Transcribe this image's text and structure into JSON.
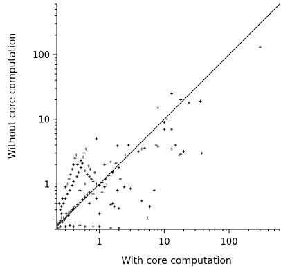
{
  "chart_data": {
    "type": "scatter",
    "title": "",
    "xlabel": "With core computation",
    "ylabel": "Without core computation",
    "x_scale": "log",
    "y_scale": "log",
    "xlim": [
      0.22,
      600
    ],
    "ylim": [
      0.2,
      600
    ],
    "x_ticks": [
      {
        "value": 1,
        "label": "1"
      },
      {
        "value": 10,
        "label": "10"
      },
      {
        "value": 100,
        "label": "100"
      }
    ],
    "y_ticks": [
      {
        "value": 1,
        "label": "1"
      },
      {
        "value": 10,
        "label": "10"
      },
      {
        "value": 100,
        "label": "100"
      }
    ],
    "grid": false,
    "legend": "none",
    "marker": "+",
    "reference_line": "y = x",
    "series": [
      {
        "points": [
          [
            300,
            130
          ],
          [
            13,
            25
          ],
          [
            18,
            20
          ],
          [
            24,
            18
          ],
          [
            36,
            19
          ],
          [
            8,
            15
          ],
          [
            11,
            10
          ],
          [
            10,
            9
          ],
          [
            10,
            7
          ],
          [
            20,
            3.2
          ],
          [
            18,
            2.9
          ],
          [
            17,
            2.8
          ],
          [
            38,
            3
          ],
          [
            13,
            3.5
          ],
          [
            15,
            4
          ],
          [
            13,
            7
          ],
          [
            7.5,
            4
          ],
          [
            8,
            3.8
          ],
          [
            5,
            3.6
          ],
          [
            4.5,
            3.5
          ],
          [
            4,
            3.2
          ],
          [
            2.8,
            4
          ],
          [
            2.5,
            2.8
          ],
          [
            1.9,
            3.9
          ],
          [
            0.9,
            5
          ],
          [
            1.2,
            2
          ],
          [
            1.5,
            2.2
          ],
          [
            1.8,
            2.1
          ],
          [
            1.6,
            1.5
          ],
          [
            2,
            1.8
          ],
          [
            2.1,
            1.2
          ],
          [
            2.4,
            0.9
          ],
          [
            1.9,
            0.8
          ],
          [
            3,
            0.85
          ],
          [
            7,
            0.8
          ],
          [
            4.5,
            0.55
          ],
          [
            6,
            0.45
          ],
          [
            5.5,
            0.3
          ],
          [
            1.6,
            0.5
          ],
          [
            1.7,
            0.45
          ],
          [
            1.5,
            0.48
          ],
          [
            2,
            0.42
          ],
          [
            1,
            0.35
          ],
          [
            0.7,
            0.5
          ],
          [
            0.9,
            0.6
          ],
          [
            1.1,
            0.75
          ],
          [
            1.3,
            1
          ],
          [
            1.2,
            0.9
          ],
          [
            0.8,
            0.7
          ],
          [
            0.75,
            1.2
          ],
          [
            0.6,
            1
          ],
          [
            0.5,
            0.8
          ],
          [
            0.55,
            2.1
          ],
          [
            0.52,
            1.8
          ],
          [
            0.48,
            1.5
          ],
          [
            0.45,
            1.3
          ],
          [
            0.4,
            1.1
          ],
          [
            0.38,
            0.95
          ],
          [
            0.35,
            0.8
          ],
          [
            0.32,
            0.7
          ],
          [
            0.3,
            0.6
          ],
          [
            0.28,
            0.5
          ],
          [
            0.26,
            0.45
          ],
          [
            0.42,
            2.5
          ],
          [
            0.44,
            2.8
          ],
          [
            0.5,
            2.2
          ],
          [
            0.58,
            3
          ],
          [
            0.62,
            3.5
          ],
          [
            0.6,
            1.6
          ],
          [
            0.65,
            1.4
          ],
          [
            0.7,
            1.3
          ],
          [
            0.8,
            1.1
          ],
          [
            0.9,
            1
          ],
          [
            1,
            0.95
          ],
          [
            1.1,
            1.05
          ],
          [
            1.25,
            1.2
          ],
          [
            1.4,
            1.35
          ],
          [
            1.6,
            1.55
          ],
          [
            0.33,
            0.33
          ],
          [
            0.3,
            0.3
          ],
          [
            0.28,
            0.3
          ],
          [
            0.25,
            0.27
          ],
          [
            0.24,
            0.25
          ],
          [
            0.23,
            0.24
          ],
          [
            0.27,
            0.26
          ],
          [
            0.29,
            0.28
          ],
          [
            0.34,
            0.36
          ],
          [
            0.38,
            0.4
          ],
          [
            0.42,
            0.45
          ],
          [
            0.46,
            0.48
          ],
          [
            0.5,
            0.52
          ],
          [
            0.55,
            0.58
          ],
          [
            0.6,
            0.63
          ],
          [
            0.65,
            0.68
          ],
          [
            0.7,
            0.74
          ],
          [
            0.36,
            0.38
          ],
          [
            0.4,
            0.42
          ],
          [
            0.31,
            0.35
          ],
          [
            0.26,
            0.3
          ],
          [
            0.25,
            0.22
          ],
          [
            0.23,
            0.21
          ],
          [
            0.3,
            0.22
          ],
          [
            0.35,
            0.23
          ],
          [
            0.4,
            0.22
          ],
          [
            0.5,
            0.23
          ],
          [
            0.6,
            0.22
          ],
          [
            0.8,
            0.22
          ],
          [
            1,
            0.22
          ],
          [
            1.5,
            0.21
          ],
          [
            2,
            0.21
          ],
          [
            0.24,
            0.5
          ],
          [
            0.25,
            0.4
          ],
          [
            0.26,
            0.35
          ],
          [
            0.27,
            0.6
          ],
          [
            0.3,
            0.9
          ],
          [
            0.32,
            1
          ],
          [
            0.34,
            1.2
          ],
          [
            0.36,
            1.4
          ],
          [
            0.38,
            1.7
          ],
          [
            0.4,
            2
          ],
          [
            0.46,
            2
          ],
          [
            0.52,
            2.3
          ],
          [
            0.56,
            2.6
          ],
          [
            0.68,
            1.9
          ],
          [
            0.72,
            1.7
          ],
          [
            0.85,
            1.5
          ]
        ]
      }
    ]
  }
}
